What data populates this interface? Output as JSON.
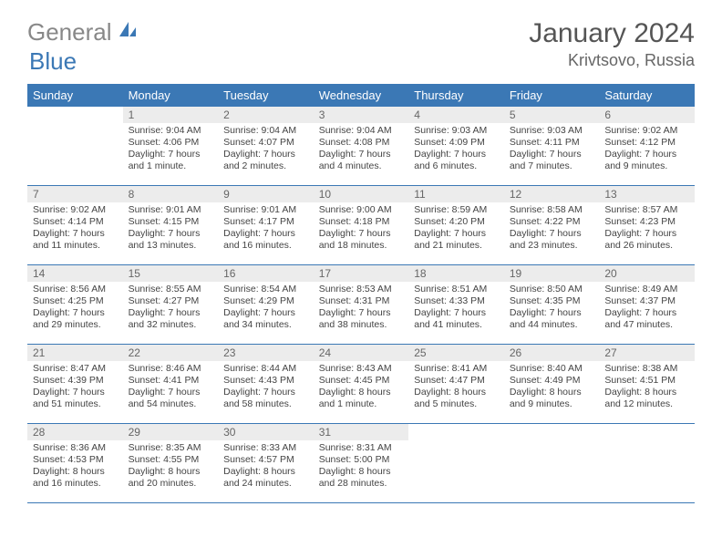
{
  "brand": {
    "part1": "General",
    "part2": "Blue"
  },
  "title": "January 2024",
  "location": "Krivtsovo, Russia",
  "colors": {
    "accent": "#3b78b5",
    "header_text": "#ffffff",
    "daynum_bg": "#ececec",
    "daynum_fg": "#666666",
    "body_text": "#444444",
    "title_fg": "#555555",
    "location_fg": "#666666",
    "row_border": "#3b78b5"
  },
  "typography": {
    "title_fontsize": 30,
    "location_fontsize": 18,
    "header_fontsize": 13,
    "daynum_fontsize": 12,
    "daytext_fontsize": 10.5
  },
  "dayHeaders": [
    "Sunday",
    "Monday",
    "Tuesday",
    "Wednesday",
    "Thursday",
    "Friday",
    "Saturday"
  ],
  "weeks": [
    [
      {
        "n": "",
        "lines": []
      },
      {
        "n": "1",
        "lines": [
          "Sunrise: 9:04 AM",
          "Sunset: 4:06 PM",
          "Daylight: 7 hours",
          "and 1 minute."
        ]
      },
      {
        "n": "2",
        "lines": [
          "Sunrise: 9:04 AM",
          "Sunset: 4:07 PM",
          "Daylight: 7 hours",
          "and 2 minutes."
        ]
      },
      {
        "n": "3",
        "lines": [
          "Sunrise: 9:04 AM",
          "Sunset: 4:08 PM",
          "Daylight: 7 hours",
          "and 4 minutes."
        ]
      },
      {
        "n": "4",
        "lines": [
          "Sunrise: 9:03 AM",
          "Sunset: 4:09 PM",
          "Daylight: 7 hours",
          "and 6 minutes."
        ]
      },
      {
        "n": "5",
        "lines": [
          "Sunrise: 9:03 AM",
          "Sunset: 4:11 PM",
          "Daylight: 7 hours",
          "and 7 minutes."
        ]
      },
      {
        "n": "6",
        "lines": [
          "Sunrise: 9:02 AM",
          "Sunset: 4:12 PM",
          "Daylight: 7 hours",
          "and 9 minutes."
        ]
      }
    ],
    [
      {
        "n": "7",
        "lines": [
          "Sunrise: 9:02 AM",
          "Sunset: 4:14 PM",
          "Daylight: 7 hours",
          "and 11 minutes."
        ]
      },
      {
        "n": "8",
        "lines": [
          "Sunrise: 9:01 AM",
          "Sunset: 4:15 PM",
          "Daylight: 7 hours",
          "and 13 minutes."
        ]
      },
      {
        "n": "9",
        "lines": [
          "Sunrise: 9:01 AM",
          "Sunset: 4:17 PM",
          "Daylight: 7 hours",
          "and 16 minutes."
        ]
      },
      {
        "n": "10",
        "lines": [
          "Sunrise: 9:00 AM",
          "Sunset: 4:18 PM",
          "Daylight: 7 hours",
          "and 18 minutes."
        ]
      },
      {
        "n": "11",
        "lines": [
          "Sunrise: 8:59 AM",
          "Sunset: 4:20 PM",
          "Daylight: 7 hours",
          "and 21 minutes."
        ]
      },
      {
        "n": "12",
        "lines": [
          "Sunrise: 8:58 AM",
          "Sunset: 4:22 PM",
          "Daylight: 7 hours",
          "and 23 minutes."
        ]
      },
      {
        "n": "13",
        "lines": [
          "Sunrise: 8:57 AM",
          "Sunset: 4:23 PM",
          "Daylight: 7 hours",
          "and 26 minutes."
        ]
      }
    ],
    [
      {
        "n": "14",
        "lines": [
          "Sunrise: 8:56 AM",
          "Sunset: 4:25 PM",
          "Daylight: 7 hours",
          "and 29 minutes."
        ]
      },
      {
        "n": "15",
        "lines": [
          "Sunrise: 8:55 AM",
          "Sunset: 4:27 PM",
          "Daylight: 7 hours",
          "and 32 minutes."
        ]
      },
      {
        "n": "16",
        "lines": [
          "Sunrise: 8:54 AM",
          "Sunset: 4:29 PM",
          "Daylight: 7 hours",
          "and 34 minutes."
        ]
      },
      {
        "n": "17",
        "lines": [
          "Sunrise: 8:53 AM",
          "Sunset: 4:31 PM",
          "Daylight: 7 hours",
          "and 38 minutes."
        ]
      },
      {
        "n": "18",
        "lines": [
          "Sunrise: 8:51 AM",
          "Sunset: 4:33 PM",
          "Daylight: 7 hours",
          "and 41 minutes."
        ]
      },
      {
        "n": "19",
        "lines": [
          "Sunrise: 8:50 AM",
          "Sunset: 4:35 PM",
          "Daylight: 7 hours",
          "and 44 minutes."
        ]
      },
      {
        "n": "20",
        "lines": [
          "Sunrise: 8:49 AM",
          "Sunset: 4:37 PM",
          "Daylight: 7 hours",
          "and 47 minutes."
        ]
      }
    ],
    [
      {
        "n": "21",
        "lines": [
          "Sunrise: 8:47 AM",
          "Sunset: 4:39 PM",
          "Daylight: 7 hours",
          "and 51 minutes."
        ]
      },
      {
        "n": "22",
        "lines": [
          "Sunrise: 8:46 AM",
          "Sunset: 4:41 PM",
          "Daylight: 7 hours",
          "and 54 minutes."
        ]
      },
      {
        "n": "23",
        "lines": [
          "Sunrise: 8:44 AM",
          "Sunset: 4:43 PM",
          "Daylight: 7 hours",
          "and 58 minutes."
        ]
      },
      {
        "n": "24",
        "lines": [
          "Sunrise: 8:43 AM",
          "Sunset: 4:45 PM",
          "Daylight: 8 hours",
          "and 1 minute."
        ]
      },
      {
        "n": "25",
        "lines": [
          "Sunrise: 8:41 AM",
          "Sunset: 4:47 PM",
          "Daylight: 8 hours",
          "and 5 minutes."
        ]
      },
      {
        "n": "26",
        "lines": [
          "Sunrise: 8:40 AM",
          "Sunset: 4:49 PM",
          "Daylight: 8 hours",
          "and 9 minutes."
        ]
      },
      {
        "n": "27",
        "lines": [
          "Sunrise: 8:38 AM",
          "Sunset: 4:51 PM",
          "Daylight: 8 hours",
          "and 12 minutes."
        ]
      }
    ],
    [
      {
        "n": "28",
        "lines": [
          "Sunrise: 8:36 AM",
          "Sunset: 4:53 PM",
          "Daylight: 8 hours",
          "and 16 minutes."
        ]
      },
      {
        "n": "29",
        "lines": [
          "Sunrise: 8:35 AM",
          "Sunset: 4:55 PM",
          "Daylight: 8 hours",
          "and 20 minutes."
        ]
      },
      {
        "n": "30",
        "lines": [
          "Sunrise: 8:33 AM",
          "Sunset: 4:57 PM",
          "Daylight: 8 hours",
          "and 24 minutes."
        ]
      },
      {
        "n": "31",
        "lines": [
          "Sunrise: 8:31 AM",
          "Sunset: 5:00 PM",
          "Daylight: 8 hours",
          "and 28 minutes."
        ]
      },
      {
        "n": "",
        "lines": []
      },
      {
        "n": "",
        "lines": []
      },
      {
        "n": "",
        "lines": []
      }
    ]
  ]
}
